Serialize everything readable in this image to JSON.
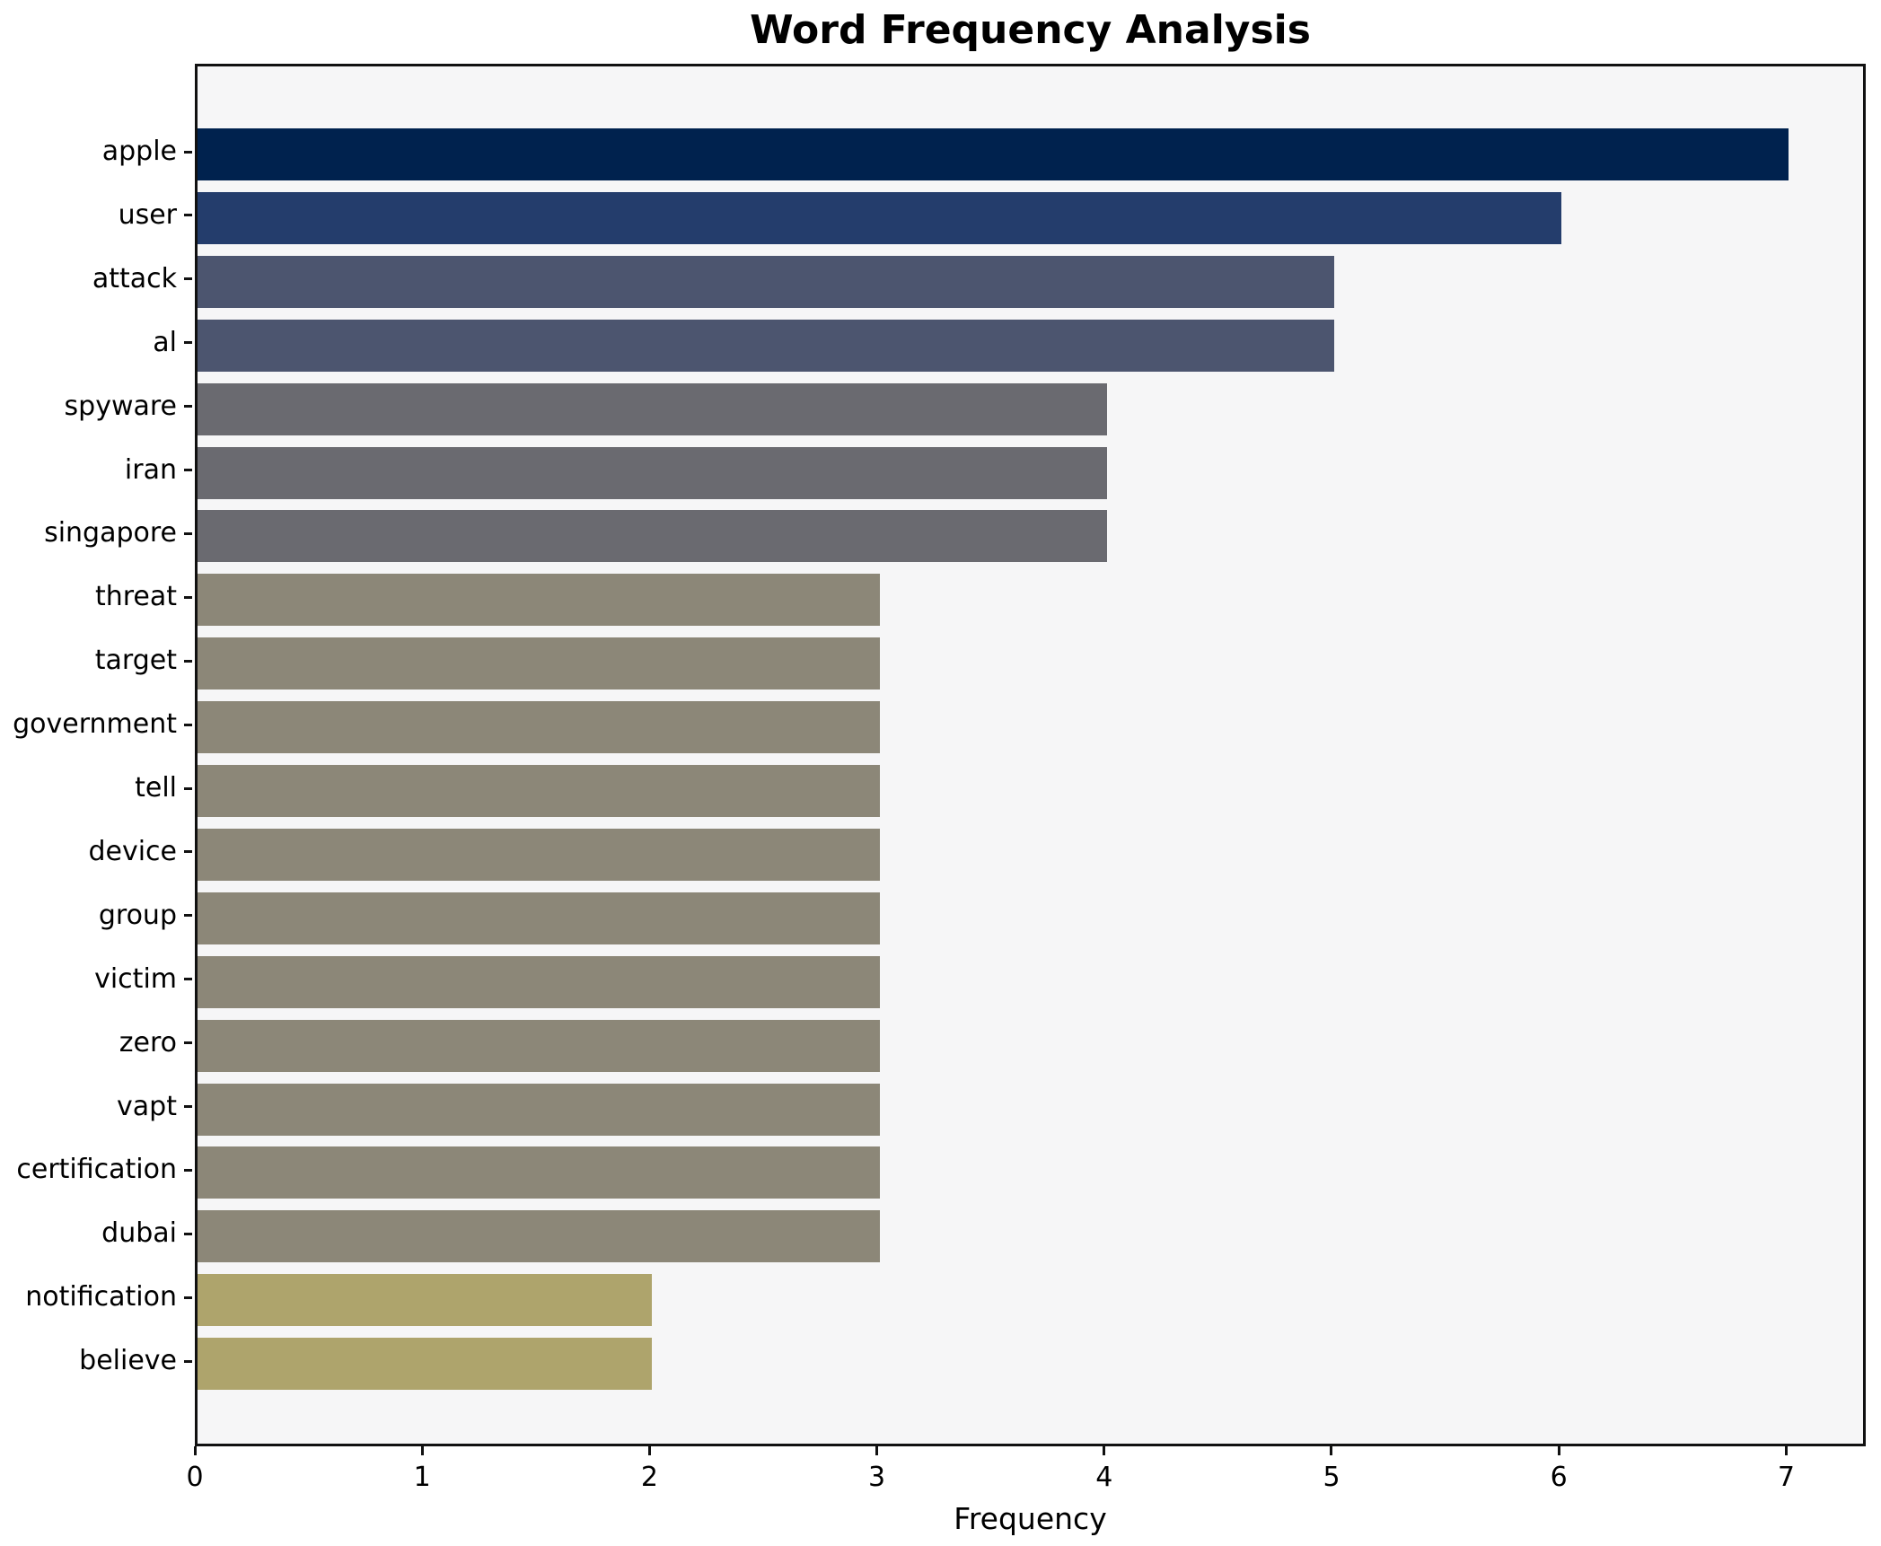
{
  "title": "Word Frequency Analysis",
  "x_axis": {
    "label": "Frequency",
    "tick_labels": [
      "0",
      "1",
      "2",
      "3",
      "4",
      "5",
      "6",
      "7"
    ],
    "tick_values": [
      0,
      1,
      2,
      3,
      4,
      5,
      6,
      7
    ]
  },
  "chart_data": {
    "type": "bar",
    "orientation": "horizontal",
    "title": "Word Frequency Analysis",
    "xlabel": "Frequency",
    "ylabel": "",
    "xlim": [
      0,
      7.35
    ],
    "grid": false,
    "legend": false,
    "categories": [
      "apple",
      "user",
      "attack",
      "al",
      "spyware",
      "iran",
      "singapore",
      "threat",
      "target",
      "government",
      "tell",
      "device",
      "group",
      "victim",
      "zero",
      "vapt",
      "certification",
      "dubai",
      "notification",
      "believe"
    ],
    "values": [
      7,
      6,
      5,
      5,
      4,
      4,
      4,
      3,
      3,
      3,
      3,
      3,
      3,
      3,
      3,
      3,
      3,
      3,
      2,
      2
    ],
    "bar_colors": [
      "#00224e",
      "#243d6c",
      "#4c556f",
      "#4c556f",
      "#6a6a70",
      "#6a6a70",
      "#6a6a70",
      "#8c8778",
      "#8c8778",
      "#8c8778",
      "#8c8778",
      "#8c8778",
      "#8c8778",
      "#8c8778",
      "#8c8778",
      "#8c8778",
      "#8c8778",
      "#8c8778",
      "#aea46c",
      "#aea46c"
    ]
  },
  "colors": {
    "figure_background": "#ffffff",
    "plot_background": "#f6f6f7",
    "spine": "#111111",
    "text": "#000000"
  }
}
